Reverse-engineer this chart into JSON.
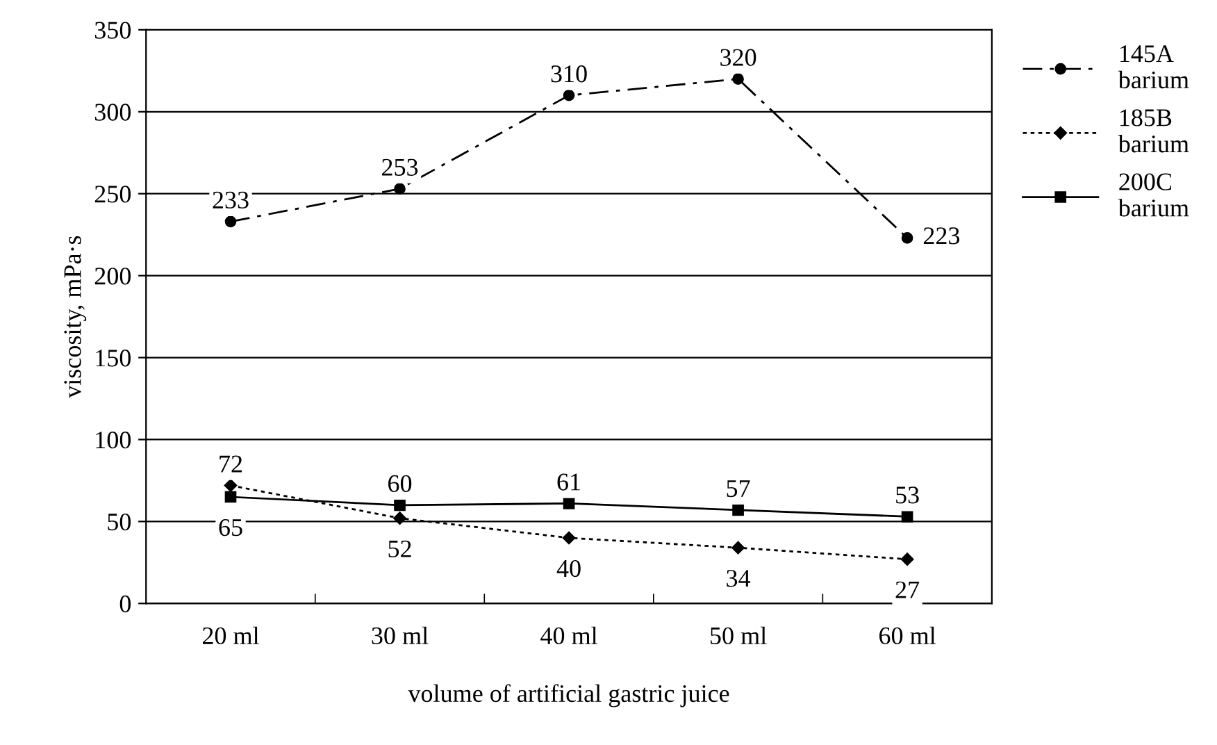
{
  "chart_data": {
    "type": "line",
    "xlabel": "volume of artificial gastric juice",
    "ylabel": "viscosity, mPa·s",
    "categories": [
      "20 ml",
      "30 ml",
      "40 ml",
      "50 ml",
      "60 ml"
    ],
    "series": [
      {
        "name": "145A barium",
        "color": "#000000",
        "values": [
          233,
          253,
          310,
          320,
          223
        ],
        "marker": "circle",
        "line_style": "dashdot"
      },
      {
        "name": "185B barium",
        "color": "#000000",
        "values": [
          72,
          52,
          40,
          34,
          27
        ],
        "marker": "diamond",
        "line_style": "dotted"
      },
      {
        "name": "200C barium",
        "color": "#000000",
        "values": [
          65,
          60,
          61,
          57,
          53
        ],
        "marker": "square",
        "line_style": "solid"
      }
    ],
    "ylim": [
      0,
      350
    ],
    "yticks": [
      0,
      50,
      100,
      150,
      200,
      250,
      300,
      350
    ],
    "grid": "y",
    "legend": "right",
    "data_labels": true
  }
}
